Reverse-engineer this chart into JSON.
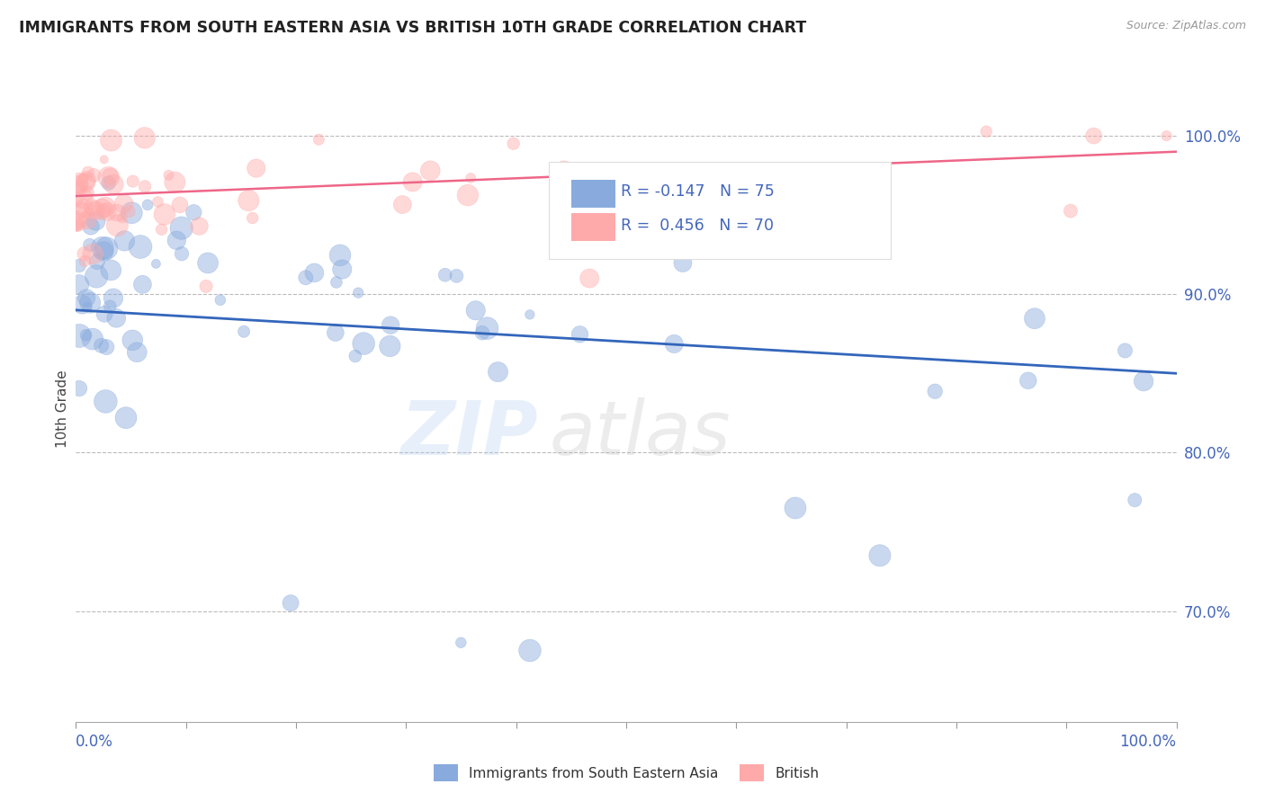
{
  "title": "IMMIGRANTS FROM SOUTH EASTERN ASIA VS BRITISH 10TH GRADE CORRELATION CHART",
  "source": "Source: ZipAtlas.com",
  "ylabel": "10th Grade",
  "xlim": [
    0.0,
    100.0
  ],
  "ylim": [
    63.0,
    102.5
  ],
  "yticks_right": [
    70.0,
    80.0,
    90.0,
    100.0
  ],
  "ytick_labels_right": [
    "70.0%",
    "80.0%",
    "90.0%",
    "100.0%"
  ],
  "color_blue": "#88AADD",
  "color_pink": "#FFAAAA",
  "color_blue_line": "#3366BB",
  "color_pink_line": "#EE6688",
  "color_blue_text": "#4466BB",
  "background": "#FFFFFF",
  "blue_trend_start": 89.0,
  "blue_trend_end": 85.0,
  "pink_trend_start": 96.2,
  "pink_trend_end": 99.0
}
